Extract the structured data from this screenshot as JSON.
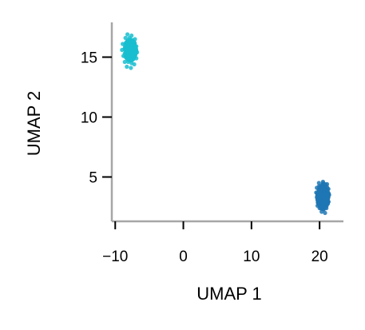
{
  "chart_data": {
    "type": "scatter",
    "title": "",
    "xlabel": "UMAP 1",
    "ylabel": "UMAP 2",
    "xlim": [
      -10.5,
      23.5
    ],
    "ylim": [
      1.3,
      17.9
    ],
    "x_ticks": [
      -10,
      0,
      10,
      20
    ],
    "x_tick_labels": [
      "−10",
      "0",
      "10",
      "20"
    ],
    "y_ticks": [
      5,
      10,
      15
    ],
    "y_tick_labels": [
      "5",
      "10",
      "15"
    ],
    "grid": false,
    "legend": "none",
    "series": [
      {
        "color": "#17becf",
        "center": [
          -7.8,
          15.6
        ],
        "spread": [
          0.9,
          0.9
        ],
        "points": [
          [
            -8.5,
            16.6
          ],
          [
            -8.2,
            16.9
          ],
          [
            -7.6,
            16.8
          ],
          [
            -7.1,
            16.5
          ],
          [
            -8.9,
            16.1
          ],
          [
            -8.4,
            16.2
          ],
          [
            -7.9,
            16.3
          ],
          [
            -7.3,
            16.2
          ],
          [
            -6.9,
            15.9
          ],
          [
            -9.0,
            15.6
          ],
          [
            -8.6,
            15.7
          ],
          [
            -8.1,
            15.8
          ],
          [
            -7.6,
            15.7
          ],
          [
            -7.1,
            15.6
          ],
          [
            -6.8,
            15.4
          ],
          [
            -8.8,
            15.1
          ],
          [
            -8.3,
            15.2
          ],
          [
            -7.8,
            15.2
          ],
          [
            -7.3,
            15.1
          ],
          [
            -6.9,
            14.9
          ],
          [
            -8.6,
            14.6
          ],
          [
            -8.1,
            14.6
          ],
          [
            -7.6,
            14.5
          ],
          [
            -7.2,
            14.4
          ],
          [
            -8.3,
            14.2
          ],
          [
            -7.7,
            14.1
          ],
          [
            -8.0,
            15.5
          ],
          [
            -7.5,
            15.9
          ],
          [
            -7.9,
            16.6
          ],
          [
            -8.6,
            15.3
          ]
        ]
      },
      {
        "color": "#1f77b4",
        "center": [
          20.5,
          3.4
        ],
        "spread": [
          0.9,
          1.1
        ],
        "points": [
          [
            19.9,
            4.5
          ],
          [
            20.5,
            4.6
          ],
          [
            21.1,
            4.4
          ],
          [
            19.6,
            4.1
          ],
          [
            20.1,
            4.2
          ],
          [
            20.7,
            4.1
          ],
          [
            21.3,
            4.0
          ],
          [
            19.5,
            3.7
          ],
          [
            20.0,
            3.8
          ],
          [
            20.5,
            3.7
          ],
          [
            21.0,
            3.6
          ],
          [
            21.4,
            3.5
          ],
          [
            19.6,
            3.3
          ],
          [
            20.1,
            3.3
          ],
          [
            20.6,
            3.2
          ],
          [
            21.1,
            3.1
          ],
          [
            19.8,
            2.8
          ],
          [
            20.3,
            2.8
          ],
          [
            20.8,
            2.7
          ],
          [
            21.2,
            2.8
          ],
          [
            20.0,
            2.4
          ],
          [
            20.6,
            2.3
          ],
          [
            21.0,
            2.4
          ],
          [
            20.3,
            2.1
          ],
          [
            20.8,
            2.0
          ],
          [
            20.2,
            3.5
          ],
          [
            20.9,
            3.9
          ],
          [
            19.7,
            2.6
          ],
          [
            20.4,
            4.3
          ],
          [
            21.3,
            3.3
          ]
        ]
      }
    ]
  }
}
